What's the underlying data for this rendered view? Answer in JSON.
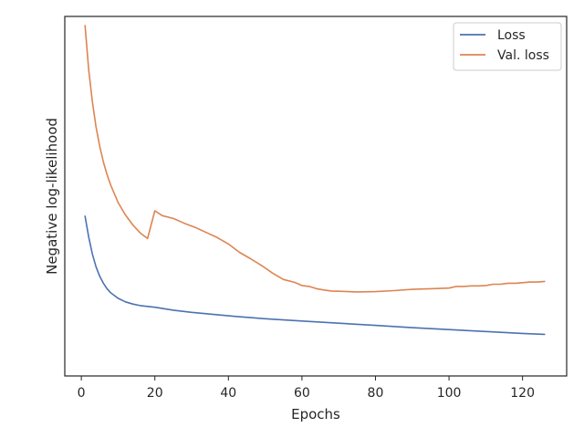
{
  "chart_data": {
    "type": "line",
    "xlabel": "Epochs",
    "ylabel": "Negative log-likelihood",
    "xlim": [
      -4.5,
      132
    ],
    "ylim": [
      0,
      1
    ],
    "xticks": [
      0,
      20,
      40,
      60,
      80,
      100,
      120
    ],
    "yticks_shown": false,
    "legend_position": "upper right",
    "series": [
      {
        "name": "Loss",
        "color": "#4c72b0",
        "x": [
          1,
          2,
          3,
          4,
          5,
          6,
          7,
          8,
          10,
          12,
          14,
          16,
          20,
          25,
          30,
          40,
          50,
          60,
          70,
          80,
          90,
          100,
          110,
          120,
          126
        ],
        "y": [
          0.403,
          0.338,
          0.285,
          0.245,
          0.215,
          0.193,
          0.176,
          0.163,
          0.146,
          0.135,
          0.128,
          0.123,
          0.118,
          0.109,
          0.102,
          0.091,
          0.082,
          0.075,
          0.068,
          0.061,
          0.054,
          0.048,
          0.042,
          0.036,
          0.033
        ]
      },
      {
        "name": "Val. loss",
        "color": "#dd8452",
        "x": [
          1,
          2,
          3,
          4,
          5,
          6,
          7,
          8,
          10,
          12,
          14,
          16,
          18,
          20,
          22,
          25,
          28,
          31,
          34,
          37,
          40,
          43,
          46,
          49,
          52,
          55,
          58,
          60,
          62,
          64,
          66,
          68,
          70,
          75,
          80,
          85,
          90,
          95,
          100,
          102,
          104,
          106,
          108,
          110,
          112,
          114,
          116,
          118,
          120,
          122,
          124,
          126
        ],
        "y": [
          1.0,
          0.862,
          0.762,
          0.683,
          0.622,
          0.573,
          0.533,
          0.5,
          0.446,
          0.407,
          0.376,
          0.351,
          0.333,
          0.42,
          0.405,
          0.396,
          0.381,
          0.368,
          0.352,
          0.336,
          0.316,
          0.29,
          0.27,
          0.249,
          0.225,
          0.205,
          0.196,
          0.186,
          0.183,
          0.176,
          0.172,
          0.169,
          0.168,
          0.166,
          0.167,
          0.17,
          0.174,
          0.176,
          0.178,
          0.183,
          0.183,
          0.185,
          0.185,
          0.186,
          0.19,
          0.19,
          0.193,
          0.193,
          0.195,
          0.197,
          0.197,
          0.199
        ]
      }
    ]
  }
}
